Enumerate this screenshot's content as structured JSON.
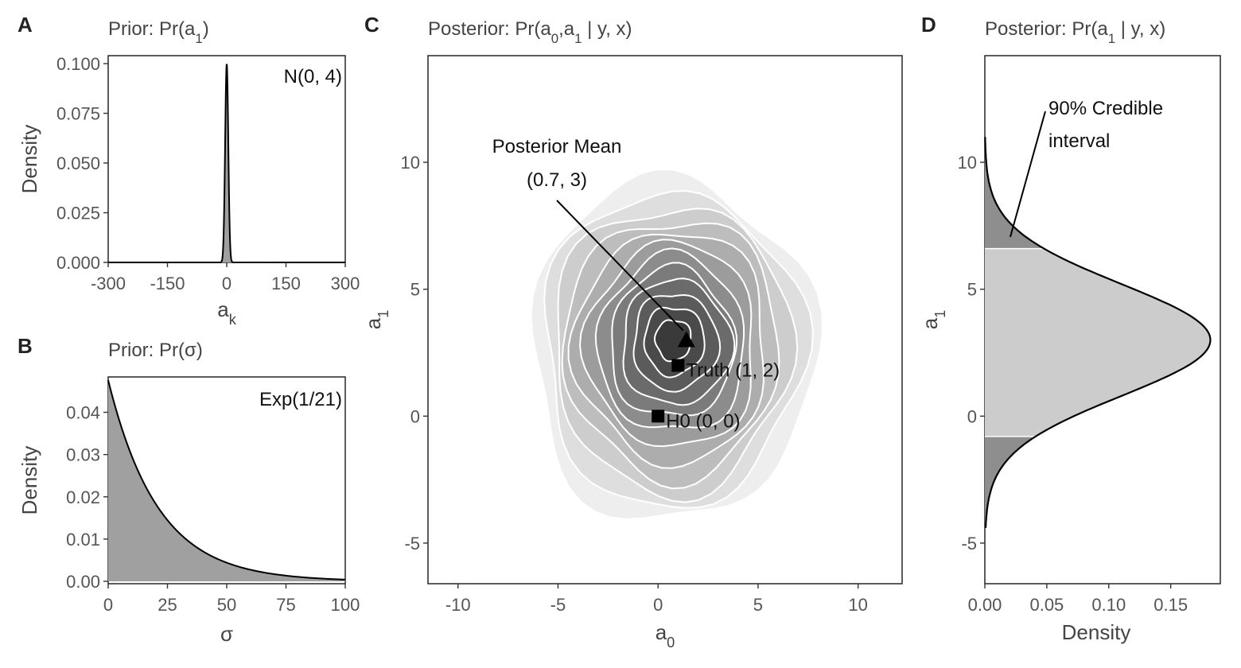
{
  "chart_data": [
    {
      "panel": "A",
      "type": "area",
      "title_parts": [
        "Prior: Pr(a",
        "1",
        ")"
      ],
      "xlabel_parts": [
        "a",
        "k"
      ],
      "ylabel": "Density",
      "annotation": "N(0, 4)",
      "distribution": {
        "family": "normal",
        "mean": 0,
        "sd": 4
      },
      "xlim": [
        -300,
        300
      ],
      "ylim": [
        0,
        0.1
      ],
      "xticks": [
        -300,
        -150,
        0,
        150,
        300
      ],
      "yticks": [
        0.0,
        0.025,
        0.05,
        0.075,
        0.1
      ],
      "ytick_labels": [
        "0.000",
        "0.025",
        "0.050",
        "0.075",
        "0.100"
      ],
      "fill": "#a0a0a0",
      "line": "#000000"
    },
    {
      "panel": "B",
      "type": "area",
      "title_parts": [
        "Prior: Pr(σ)"
      ],
      "xlabel": "σ",
      "ylabel": "Density",
      "annotation": "Exp(1/21)",
      "distribution": {
        "family": "exponential",
        "rate": 0.0476
      },
      "xlim": [
        0,
        100
      ],
      "ylim": [
        0,
        0.048
      ],
      "xticks": [
        0,
        25,
        50,
        75,
        100
      ],
      "yticks": [
        0.0,
        0.01,
        0.02,
        0.03,
        0.04
      ],
      "ytick_labels": [
        "0.00",
        "0.01",
        "0.02",
        "0.03",
        "0.04"
      ],
      "fill": "#a0a0a0",
      "line": "#000000"
    },
    {
      "panel": "C",
      "type": "heatmap",
      "title_parts": [
        "Posterior: Pr(a",
        "0",
        ",a",
        "1",
        " | y, x)"
      ],
      "xlabel_parts": [
        "a",
        "0"
      ],
      "ylabel_parts": [
        "a",
        "1"
      ],
      "xlim": [
        -11.5,
        12.2
      ],
      "ylim": [
        -6.6,
        14.2
      ],
      "xticks": [
        -10,
        -5,
        0,
        5,
        10
      ],
      "yticks": [
        -5,
        0,
        5,
        10
      ],
      "density_center": [
        0.7,
        3.0
      ],
      "contour_levels": 12,
      "contour_line_color": "#ffffff",
      "fill_light": "#eeeeee",
      "fill_dark": "#3a3a3a",
      "points": [
        {
          "label": "Posterior Mean (0.7, 3)",
          "x": 0.7,
          "y": 3,
          "marker": "triangle"
        },
        {
          "label": "Truth (1, 2)",
          "x": 1,
          "y": 2,
          "marker": "square"
        },
        {
          "label": "H0 (0, 0)",
          "x": 0,
          "y": 0,
          "marker": "square"
        }
      ],
      "annotations": {
        "posterior_mean_line1": "Posterior Mean",
        "posterior_mean_line2": "(0.7, 3)",
        "truth": "Truth (1, 2)",
        "h0": "H0 (0, 0)"
      }
    },
    {
      "panel": "D",
      "type": "area",
      "orientation": "horizontal",
      "title_parts": [
        "Posterior: Pr(a",
        "1",
        " | y, x)"
      ],
      "xlabel": "Density",
      "ylabel_parts": [
        "a",
        "1"
      ],
      "xlim": [
        0,
        0.19
      ],
      "ylim": [
        -6.6,
        14.2
      ],
      "xticks": [
        0.0,
        0.05,
        0.1,
        0.15
      ],
      "xtick_labels": [
        "0.00",
        "0.05",
        "0.10",
        "0.15"
      ],
      "yticks": [
        -5,
        0,
        5,
        10
      ],
      "distribution": {
        "family": "normal",
        "mean": 3.0,
        "sd": 2.2,
        "peak_density": 0.182
      },
      "support": [
        -4.4,
        11.0
      ],
      "credible_interval": [
        -0.8,
        6.6
      ],
      "annotation_line1": "90% Credible",
      "annotation_line2": "interval",
      "inner_fill": "#cccccc",
      "tail_fill": "#8e8e8e"
    }
  ],
  "panel_letters": [
    "A",
    "B",
    "C",
    "D"
  ]
}
